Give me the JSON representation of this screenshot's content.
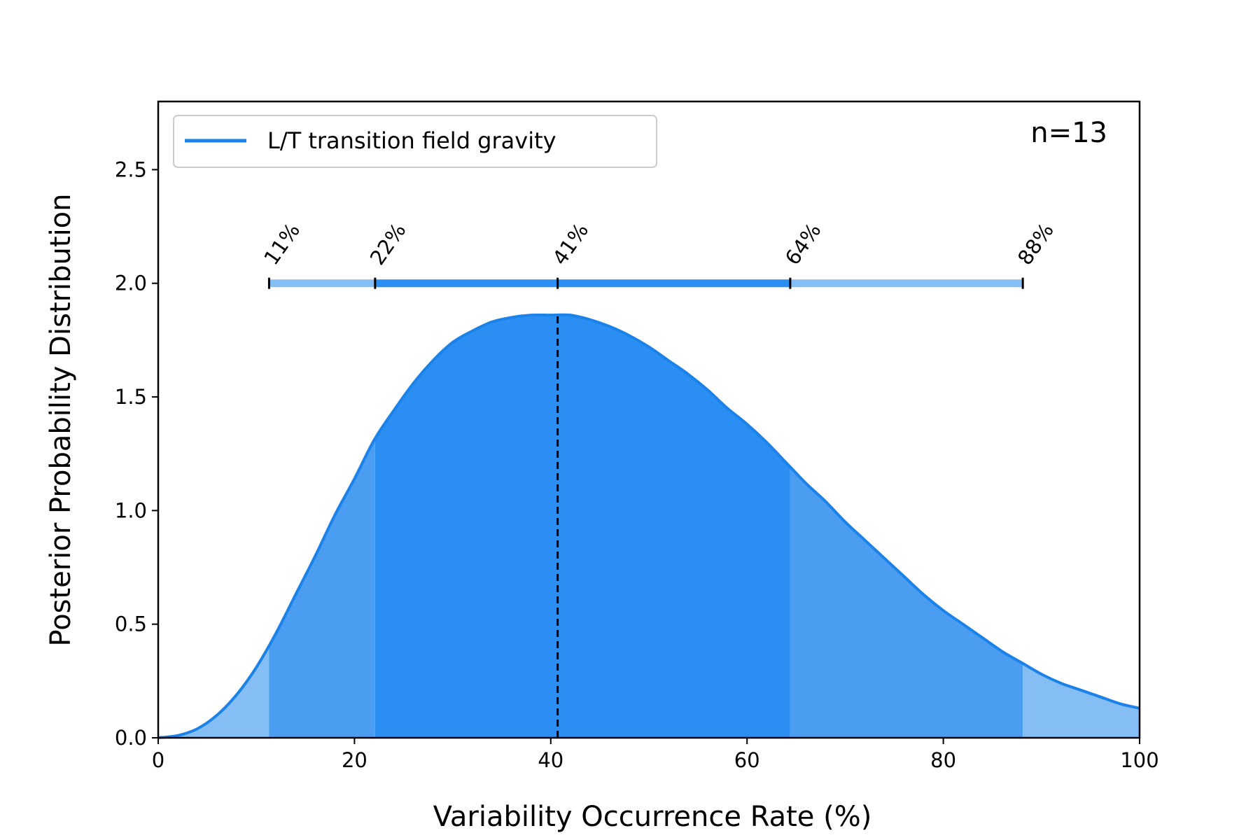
{
  "chart_data": {
    "type": "area",
    "xlabel": "Variability Occurrence Rate (%)",
    "ylabel": "Posterior Probability Distribution",
    "xlim": [
      0,
      100
    ],
    "ylim": [
      0,
      2.8
    ],
    "xticks": [
      0,
      20,
      40,
      60,
      80,
      100
    ],
    "yticks": [
      0.0,
      0.5,
      1.0,
      1.5,
      2.0,
      2.5
    ],
    "xtick_labels": [
      "0",
      "20",
      "40",
      "60",
      "80",
      "100"
    ],
    "ytick_labels": [
      "0.0",
      "0.5",
      "1.0",
      "1.5",
      "2.0",
      "2.5"
    ],
    "grid": false,
    "legend": {
      "position": "top-left",
      "entries": [
        "L/T transition field gravity"
      ]
    },
    "annotation": "n=13",
    "series": [
      {
        "name": "L/T transition field gravity",
        "color": "#1a82e8",
        "x": [
          0,
          2,
          4,
          6,
          8,
          10,
          12,
          14,
          16,
          18,
          20,
          22,
          24,
          26,
          28,
          30,
          32,
          34,
          36,
          38,
          40,
          42,
          44,
          46,
          48,
          50,
          52,
          54,
          56,
          58,
          60,
          62,
          64,
          66,
          68,
          70,
          72,
          74,
          76,
          78,
          80,
          82,
          84,
          86,
          88,
          90,
          92,
          94,
          96,
          98,
          100
        ],
        "y": [
          0.0,
          0.01,
          0.04,
          0.1,
          0.19,
          0.31,
          0.46,
          0.63,
          0.8,
          0.98,
          1.14,
          1.31,
          1.44,
          1.56,
          1.66,
          1.74,
          1.79,
          1.83,
          1.85,
          1.86,
          1.86,
          1.86,
          1.84,
          1.81,
          1.77,
          1.72,
          1.66,
          1.6,
          1.53,
          1.45,
          1.38,
          1.3,
          1.21,
          1.12,
          1.04,
          0.95,
          0.87,
          0.79,
          0.71,
          0.63,
          0.56,
          0.5,
          0.44,
          0.38,
          0.33,
          0.28,
          0.24,
          0.21,
          0.18,
          0.15,
          0.13
        ]
      }
    ],
    "mode": 40.7,
    "interval_bar_y": 2.0,
    "percentiles": [
      {
        "value": 11.3,
        "label": "11%"
      },
      {
        "value": 22.1,
        "label": "22%"
      },
      {
        "value": 40.7,
        "label": "41%"
      },
      {
        "value": 64.4,
        "label": "64%"
      },
      {
        "value": 88.1,
        "label": "88%"
      }
    ],
    "colors": {
      "line": "#1a82e8",
      "fill_outer": "#85bef5",
      "fill_mid": "#4a9df0",
      "fill_inner": "#2a8ef2",
      "bar_outer": "#85bef5",
      "bar_inner": "#2a8ef2",
      "mode_line": "#000000"
    }
  }
}
